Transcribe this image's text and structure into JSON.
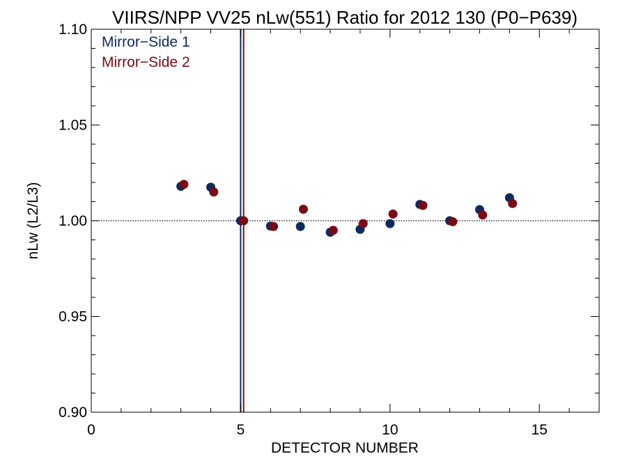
{
  "chart_data": {
    "type": "scatter",
    "title": "VIIRS/NPP VV25 nLw(551) Ratio for 2012 130 (P0−P639)",
    "xlabel": "DETECTOR NUMBER",
    "ylabel": "nLw (L2/L3)",
    "xlim": [
      0,
      17
    ],
    "ylim": [
      0.9,
      1.1
    ],
    "x_ticks": [
      0,
      5,
      10,
      15
    ],
    "x_tick_labels": [
      "0",
      "5",
      "10",
      "15"
    ],
    "x_minor_step": 1,
    "y_ticks": [
      0.9,
      0.95,
      1.0,
      1.05,
      1.1
    ],
    "y_tick_labels": [
      "0.90",
      "0.95",
      "1.00",
      "1.05",
      "1.10"
    ],
    "y_minor_step": 0.01,
    "reference_line": {
      "y": 1.0,
      "style": "dotted"
    },
    "vertical_lines": [
      {
        "x": 5.0,
        "color": "#0c2a5e"
      },
      {
        "x": 5.1,
        "color": "#7b0a14"
      }
    ],
    "legend": {
      "position": "top-left"
    },
    "series": [
      {
        "name": "Mirror−Side 1",
        "color": "#0c2a5e",
        "x": [
          3,
          4,
          5,
          6,
          7,
          8,
          9,
          10,
          11,
          12,
          13,
          14
        ],
        "y": [
          1.018,
          1.0175,
          1.0,
          0.9972,
          0.997,
          0.994,
          0.9955,
          0.9985,
          1.0085,
          1.0,
          1.0058,
          1.012
        ]
      },
      {
        "name": "Mirror−Side 2",
        "color": "#7b0a14",
        "x": [
          3.1,
          4.1,
          5.1,
          6.1,
          7.1,
          8.1,
          9.1,
          10.1,
          11.1,
          12.1,
          13.1,
          14.1
        ],
        "y": [
          1.019,
          1.015,
          1.0,
          0.997,
          1.006,
          0.995,
          0.9985,
          1.0035,
          1.008,
          0.9995,
          1.003,
          1.009
        ]
      }
    ]
  }
}
